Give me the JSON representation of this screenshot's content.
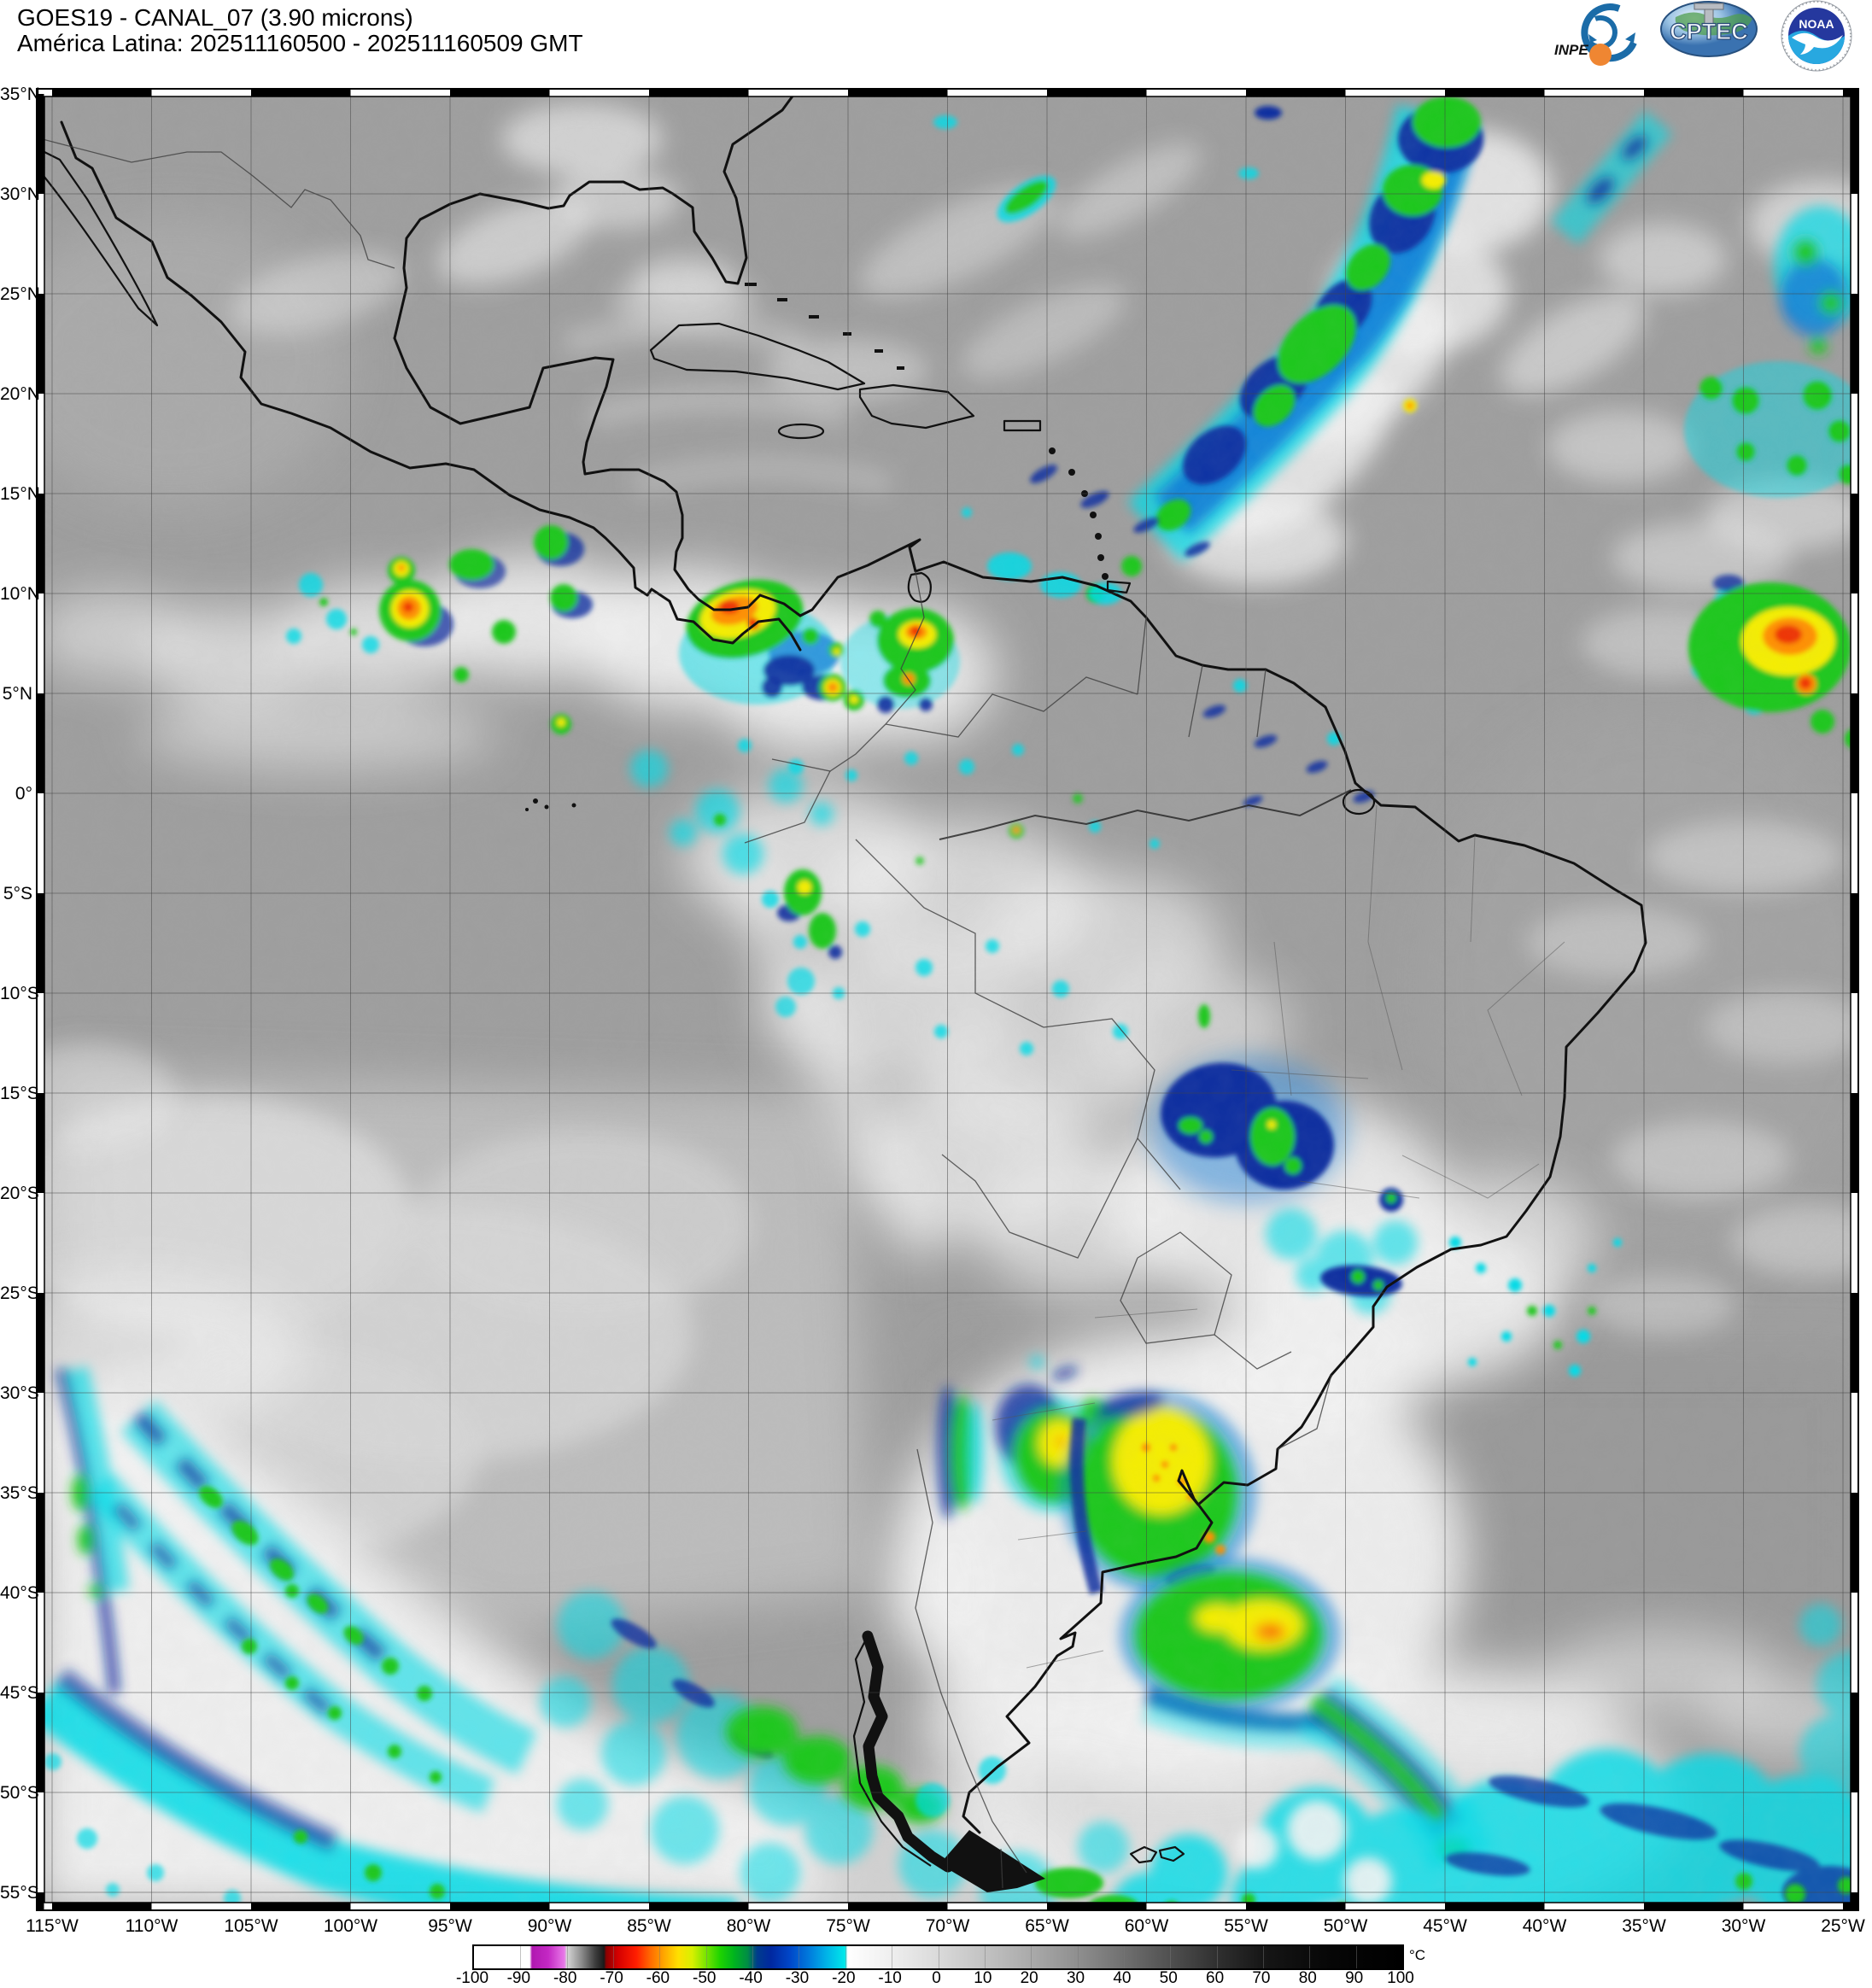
{
  "header": {
    "title_line1": "GOES19 - CANAL_07 (3.90 microns)",
    "title_line2": "América Latina: 202511160500 - 202511160509 GMT"
  },
  "logos": {
    "inpe_label": "INPE",
    "cptec_label": "CPTEC",
    "noaa_label": "NOAA"
  },
  "map": {
    "lat_labels": [
      "35°N",
      "30°N",
      "25°N",
      "20°N",
      "15°N",
      "10°N",
      "5°N",
      "0°",
      "5°S",
      "10°S",
      "15°S",
      "20°S",
      "25°S",
      "30°S",
      "35°S",
      "40°S",
      "45°S",
      "50°S",
      "55°S"
    ],
    "lon_labels": [
      "115°W",
      "110°W",
      "105°W",
      "100°W",
      "95°W",
      "90°W",
      "85°W",
      "80°W",
      "75°W",
      "70°W",
      "65°W",
      "60°W",
      "55°W",
      "50°W",
      "45°W",
      "40°W",
      "35°W",
      "30°W",
      "25°W"
    ]
  },
  "colorbar": {
    "unit": "°C",
    "tick_labels": [
      "-100",
      "-90",
      "-80",
      "-70",
      "-60",
      "-50",
      "-40",
      "-30",
      "-20",
      "-10",
      "0",
      "10",
      "20",
      "30",
      "40",
      "50",
      "60",
      "70",
      "80",
      "90",
      "100"
    ],
    "stops": [
      {
        "v": -100,
        "c": "#ffffff"
      },
      {
        "v": -88,
        "c": "#ffffff"
      },
      {
        "v": -87.5,
        "c": "#b018b0"
      },
      {
        "v": -84,
        "c": "#c428c4"
      },
      {
        "v": -80.5,
        "c": "#e87ae8"
      },
      {
        "v": -80,
        "c": "#d8d8d8"
      },
      {
        "v": -77,
        "c": "#909090"
      },
      {
        "v": -74,
        "c": "#404040"
      },
      {
        "v": -72,
        "c": "#1a1a1a"
      },
      {
        "v": -71.5,
        "c": "#8c0000"
      },
      {
        "v": -69,
        "c": "#d40000"
      },
      {
        "v": -65,
        "c": "#ff1e00"
      },
      {
        "v": -62,
        "c": "#ff6a00"
      },
      {
        "v": -59,
        "c": "#ffa800"
      },
      {
        "v": -56,
        "c": "#ffe000"
      },
      {
        "v": -53,
        "c": "#d8f000"
      },
      {
        "v": -50,
        "c": "#78e400"
      },
      {
        "v": -47,
        "c": "#1ed400"
      },
      {
        "v": -44,
        "c": "#00b41e"
      },
      {
        "v": -41,
        "c": "#008c46"
      },
      {
        "v": -39,
        "c": "#003c8c"
      },
      {
        "v": -36,
        "c": "#0028a0"
      },
      {
        "v": -32,
        "c": "#0046c8"
      },
      {
        "v": -28,
        "c": "#0078dc"
      },
      {
        "v": -24,
        "c": "#00b4e8"
      },
      {
        "v": -20,
        "c": "#00eaea"
      },
      {
        "v": -19.5,
        "c": "#ffffff"
      },
      {
        "v": -12,
        "c": "#f2f2f2"
      },
      {
        "v": 0,
        "c": "#dadada"
      },
      {
        "v": 10,
        "c": "#c2c2c2"
      },
      {
        "v": 20,
        "c": "#aaaaaa"
      },
      {
        "v": 30,
        "c": "#8f8f8f"
      },
      {
        "v": 40,
        "c": "#707070"
      },
      {
        "v": 50,
        "c": "#505050"
      },
      {
        "v": 60,
        "c": "#303030"
      },
      {
        "v": 70,
        "c": "#161616"
      },
      {
        "v": 85,
        "c": "#060606"
      },
      {
        "v": 100,
        "c": "#000000"
      }
    ]
  },
  "palette": {
    "base_gray": "#9e9e9e",
    "cloud_white": "#f3f3f3",
    "cyan": "#00dce8",
    "blue": "#0a78d8",
    "navy": "#0c2ea0",
    "green": "#1ec81e",
    "yellow": "#f5ee00",
    "orange": "#ff9000",
    "red": "#f03200",
    "magenta": "#cc30cc",
    "coastline": "#111111"
  }
}
